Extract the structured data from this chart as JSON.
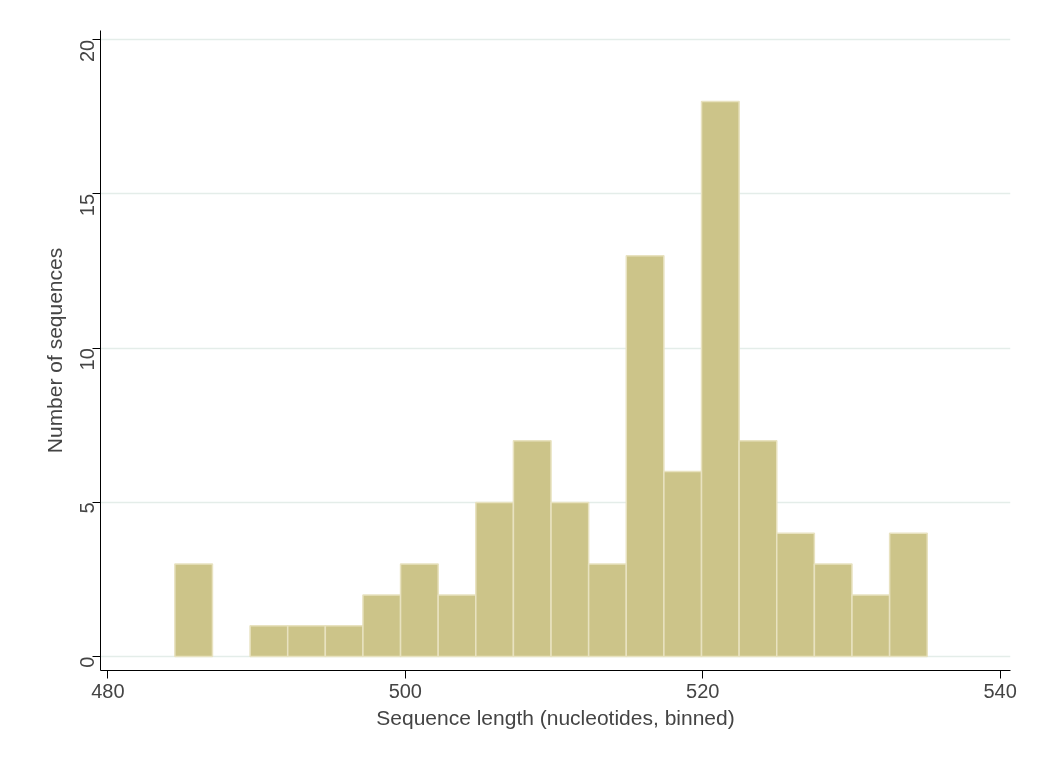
{
  "chart_data": {
    "type": "histogram",
    "xlabel": "Sequence length (nucleotides, binned)",
    "ylabel": "Number of sequences",
    "bins": [
      484.5,
      487.03,
      489.56,
      492.09,
      494.62,
      497.15,
      499.68,
      502.21,
      504.74,
      507.27,
      509.8,
      512.33,
      514.86,
      517.39,
      519.92,
      522.45,
      524.98,
      527.51,
      530.04,
      532.57,
      535.1
    ],
    "values": [
      3,
      0,
      1,
      1,
      1,
      2,
      3,
      2,
      5,
      7,
      5,
      3,
      13,
      6,
      18,
      7,
      4,
      3,
      2,
      4
    ],
    "color": "#ccc489",
    "xlim": [
      479.5,
      540.7
    ],
    "ylim": [
      -0.45,
      20.3
    ],
    "xticks": [
      480,
      500,
      520,
      540
    ],
    "yticks": [
      0,
      5,
      10,
      15,
      20
    ],
    "grid": "y"
  }
}
